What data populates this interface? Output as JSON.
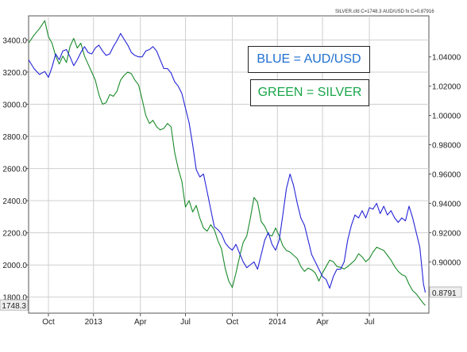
{
  "chart_data": {
    "type": "line",
    "title": "",
    "header": {
      "silver": "SILVER.cfd C=1748.3",
      "aud": "AUD/USD fx C=0.87916"
    },
    "annotations": {
      "blue": "BLUE = AUD/USD",
      "green": "GREEN = SILVER"
    },
    "x_tick_labels": [
      "Oct",
      "2013",
      "Apr",
      "Jul",
      "Oct",
      "2014",
      "Apr",
      "Jul"
    ],
    "left_axis": {
      "ylim": [
        1700,
        3550
      ],
      "tick_labels": [
        "3400.0",
        "3200.0",
        "3000.0",
        "2800.0",
        "2600.0",
        "2400.0",
        "2200.0",
        "2000.0",
        "1800.0"
      ],
      "last_value_label": "1748.3"
    },
    "right_axis": {
      "ylim": [
        0.865,
        1.068
      ],
      "tick_labels": [
        "1.04000",
        "1.02000",
        "1.00000",
        "0.98000",
        "0.96000",
        "0.94000",
        "0.92000",
        "0.90000"
      ],
      "last_value_label": "0.8791"
    },
    "grid": true,
    "series": [
      {
        "name": "SILVER",
        "axis": "left",
        "color": "#1a8a2a",
        "points": [
          [
            0,
            3380
          ],
          [
            3,
            3430
          ],
          [
            6,
            3470
          ],
          [
            9,
            3520
          ],
          [
            11,
            3420
          ],
          [
            13,
            3380
          ],
          [
            15,
            3300
          ],
          [
            17,
            3250
          ],
          [
            19,
            3300
          ],
          [
            21,
            3260
          ],
          [
            23,
            3360
          ],
          [
            25,
            3410
          ],
          [
            27,
            3350
          ],
          [
            29,
            3380
          ],
          [
            31,
            3300
          ],
          [
            33,
            3250
          ],
          [
            35,
            3200
          ],
          [
            37,
            3150
          ],
          [
            39,
            3060
          ],
          [
            41,
            3000
          ],
          [
            43,
            3010
          ],
          [
            45,
            3060
          ],
          [
            47,
            3050
          ],
          [
            49,
            3080
          ],
          [
            51,
            3150
          ],
          [
            53,
            3180
          ],
          [
            55,
            3200
          ],
          [
            57,
            3190
          ],
          [
            59,
            3150
          ],
          [
            61,
            3120
          ],
          [
            63,
            3030
          ],
          [
            65,
            2930
          ],
          [
            67,
            2880
          ],
          [
            69,
            2900
          ],
          [
            71,
            2860
          ],
          [
            73,
            2840
          ],
          [
            75,
            2850
          ],
          [
            77,
            2880
          ],
          [
            79,
            2860
          ],
          [
            81,
            2700
          ],
          [
            83,
            2600
          ],
          [
            85,
            2520
          ],
          [
            87,
            2360
          ],
          [
            89,
            2400
          ],
          [
            91,
            2330
          ],
          [
            93,
            2370
          ],
          [
            95,
            2290
          ],
          [
            97,
            2230
          ],
          [
            99,
            2210
          ],
          [
            101,
            2250
          ],
          [
            103,
            2220
          ],
          [
            105,
            2150
          ],
          [
            107,
            2100
          ],
          [
            109,
            1980
          ],
          [
            111,
            1900
          ],
          [
            113,
            1860
          ],
          [
            115,
            1950
          ],
          [
            117,
            2050
          ],
          [
            119,
            2140
          ],
          [
            121,
            2180
          ],
          [
            123,
            2290
          ],
          [
            125,
            2420
          ],
          [
            127,
            2390
          ],
          [
            129,
            2270
          ],
          [
            131,
            2240
          ],
          [
            133,
            2190
          ],
          [
            135,
            2180
          ],
          [
            137,
            2230
          ],
          [
            139,
            2180
          ],
          [
            141,
            2120
          ],
          [
            143,
            2090
          ],
          [
            145,
            2080
          ],
          [
            147,
            2060
          ],
          [
            149,
            2040
          ],
          [
            151,
            1990
          ],
          [
            153,
            1960
          ],
          [
            155,
            1980
          ],
          [
            157,
            1970
          ],
          [
            159,
            1950
          ],
          [
            161,
            1900
          ],
          [
            163,
            1950
          ],
          [
            165,
            1990
          ],
          [
            167,
            2030
          ],
          [
            169,
            2020
          ],
          [
            171,
            1990
          ],
          [
            173,
            1985
          ],
          [
            175,
            1975
          ],
          [
            177,
            1990
          ],
          [
            179,
            2010
          ],
          [
            181,
            2030
          ],
          [
            183,
            2070
          ],
          [
            185,
            2050
          ],
          [
            187,
            2020
          ],
          [
            189,
            2040
          ],
          [
            191,
            2080
          ],
          [
            193,
            2110
          ],
          [
            195,
            2100
          ],
          [
            197,
            2090
          ],
          [
            199,
            2060
          ],
          [
            201,
            2030
          ],
          [
            203,
            1990
          ],
          [
            205,
            1960
          ],
          [
            207,
            1940
          ],
          [
            209,
            1930
          ],
          [
            211,
            1880
          ],
          [
            213,
            1840
          ],
          [
            215,
            1820
          ],
          [
            217,
            1790
          ],
          [
            219,
            1760
          ],
          [
            220,
            1748.3
          ]
        ]
      },
      {
        "name": "AUD/USD",
        "axis": "right",
        "color": "#2424d8",
        "points": [
          [
            0,
            1.038
          ],
          [
            3,
            1.032
          ],
          [
            6,
            1.028
          ],
          [
            9,
            1.03
          ],
          [
            11,
            1.026
          ],
          [
            13,
            1.033
          ],
          [
            15,
            1.042
          ],
          [
            17,
            1.038
          ],
          [
            19,
            1.044
          ],
          [
            21,
            1.045
          ],
          [
            23,
            1.04
          ],
          [
            25,
            1.034
          ],
          [
            27,
            1.038
          ],
          [
            29,
            1.043
          ],
          [
            31,
            1.047
          ],
          [
            33,
            1.043
          ],
          [
            35,
            1.042
          ],
          [
            37,
            1.046
          ],
          [
            39,
            1.048
          ],
          [
            41,
            1.044
          ],
          [
            43,
            1.041
          ],
          [
            45,
            1.042
          ],
          [
            47,
            1.047
          ],
          [
            49,
            1.051
          ],
          [
            51,
            1.056
          ],
          [
            53,
            1.052
          ],
          [
            55,
            1.048
          ],
          [
            57,
            1.043
          ],
          [
            59,
            1.041
          ],
          [
            61,
            1.04
          ],
          [
            63,
            1.04
          ],
          [
            65,
            1.044
          ],
          [
            67,
            1.045
          ],
          [
            69,
            1.047
          ],
          [
            71,
            1.044
          ],
          [
            73,
            1.038
          ],
          [
            75,
            1.032
          ],
          [
            77,
            1.032
          ],
          [
            79,
            1.029
          ],
          [
            81,
            1.023
          ],
          [
            83,
            1.02
          ],
          [
            85,
            1.015
          ],
          [
            87,
            1.005
          ],
          [
            89,
            0.995
          ],
          [
            91,
            0.98
          ],
          [
            93,
            0.963
          ],
          [
            95,
            0.958
          ],
          [
            97,
            0.96
          ],
          [
            99,
            0.948
          ],
          [
            101,
            0.936
          ],
          [
            103,
            0.924
          ],
          [
            105,
            0.922
          ],
          [
            107,
            0.919
          ],
          [
            109,
            0.913
          ],
          [
            111,
            0.91
          ],
          [
            113,
            0.908
          ],
          [
            115,
            0.912
          ],
          [
            117,
            0.906
          ],
          [
            119,
            0.9
          ],
          [
            121,
            0.896
          ],
          [
            123,
            0.898
          ],
          [
            125,
            0.9
          ],
          [
            127,
            0.895
          ],
          [
            129,
            0.905
          ],
          [
            131,
            0.915
          ],
          [
            133,
            0.92
          ],
          [
            135,
            0.912
          ],
          [
            137,
            0.908
          ],
          [
            139,
            0.915
          ],
          [
            141,
            0.932
          ],
          [
            143,
            0.95
          ],
          [
            145,
            0.96
          ],
          [
            147,
            0.952
          ],
          [
            149,
            0.94
          ],
          [
            151,
            0.93
          ],
          [
            153,
            0.925
          ],
          [
            155,
            0.915
          ],
          [
            157,
            0.905
          ],
          [
            159,
            0.9
          ],
          [
            161,
            0.895
          ],
          [
            163,
            0.89
          ],
          [
            165,
            0.888
          ],
          [
            167,
            0.882
          ],
          [
            169,
            0.89
          ],
          [
            171,
            0.895
          ],
          [
            173,
            0.895
          ],
          [
            175,
            0.9
          ],
          [
            177,
            0.915
          ],
          [
            179,
            0.925
          ],
          [
            181,
            0.932
          ],
          [
            183,
            0.93
          ],
          [
            185,
            0.935
          ],
          [
            187,
            0.93
          ],
          [
            189,
            0.937
          ],
          [
            191,
            0.936
          ],
          [
            193,
            0.94
          ],
          [
            195,
            0.933
          ],
          [
            197,
            0.938
          ],
          [
            199,
            0.932
          ],
          [
            201,
            0.935
          ],
          [
            203,
            0.93
          ],
          [
            205,
            0.927
          ],
          [
            207,
            0.93
          ],
          [
            209,
            0.928
          ],
          [
            211,
            0.938
          ],
          [
            213,
            0.93
          ],
          [
            215,
            0.92
          ],
          [
            217,
            0.91
          ],
          [
            219,
            0.885
          ],
          [
            220,
            0.8791
          ]
        ]
      }
    ]
  }
}
